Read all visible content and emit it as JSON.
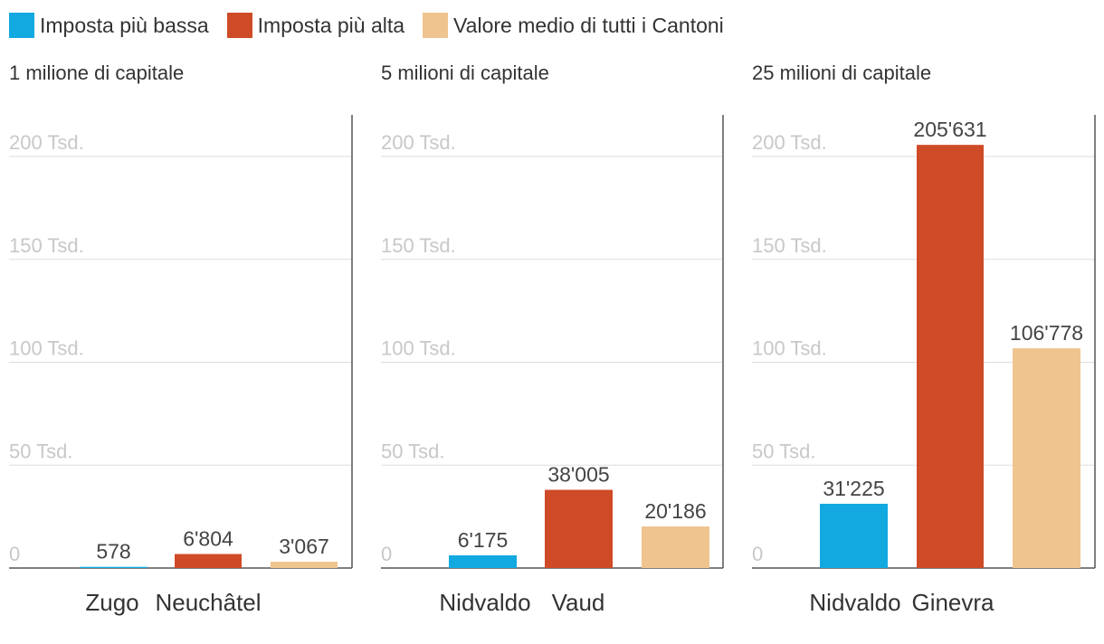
{
  "legend": [
    {
      "label": "Imposta più bassa",
      "color": "#12a9e1"
    },
    {
      "label": "Imposta più alta",
      "color": "#cf4a27"
    },
    {
      "label": "Valore medio di tutti i Cantoni",
      "color": "#efc48f"
    }
  ],
  "chart_data": [
    {
      "type": "bar",
      "title": "1 milione di capitale",
      "categories": [
        "Zugo",
        "Neuchâtel",
        ""
      ],
      "values": [
        578,
        6804,
        3067
      ],
      "value_labels": [
        "578",
        "6'804",
        "3'067"
      ],
      "colors": [
        "#12a9e1",
        "#cf4a27",
        "#efc48f"
      ],
      "ylim": [
        0,
        200000
      ],
      "ticks": [
        {
          "value": 0,
          "label": "0"
        },
        {
          "value": 50000,
          "label": "50 Tsd."
        },
        {
          "value": 100000,
          "label": "100 Tsd."
        },
        {
          "value": 150000,
          "label": "150 Tsd."
        },
        {
          "value": 200000,
          "label": "200 Tsd."
        }
      ],
      "grid": true
    },
    {
      "type": "bar",
      "title": "5 milioni di capitale",
      "categories": [
        "Nidvaldo",
        "Vaud",
        ""
      ],
      "values": [
        6175,
        38005,
        20186
      ],
      "value_labels": [
        "6'175",
        "38'005",
        "20'186"
      ],
      "colors": [
        "#12a9e1",
        "#cf4a27",
        "#efc48f"
      ],
      "ylim": [
        0,
        200000
      ],
      "ticks": [
        {
          "value": 0,
          "label": "0"
        },
        {
          "value": 50000,
          "label": "50 Tsd."
        },
        {
          "value": 100000,
          "label": "100 Tsd."
        },
        {
          "value": 150000,
          "label": "150 Tsd."
        },
        {
          "value": 200000,
          "label": "200 Tsd."
        }
      ],
      "grid": true
    },
    {
      "type": "bar",
      "title": "25 milioni di capitale",
      "categories": [
        "Nidvaldo",
        "Ginevra",
        ""
      ],
      "values": [
        31225,
        205631,
        106778
      ],
      "value_labels": [
        "31'225",
        "205'631",
        "106'778"
      ],
      "colors": [
        "#12a9e1",
        "#cf4a27",
        "#efc48f"
      ],
      "ylim": [
        0,
        200000
      ],
      "ticks": [
        {
          "value": 0,
          "label": "0"
        },
        {
          "value": 50000,
          "label": "50 Tsd."
        },
        {
          "value": 100000,
          "label": "100 Tsd."
        },
        {
          "value": 150000,
          "label": "150 Tsd."
        },
        {
          "value": 200000,
          "label": "200 Tsd."
        }
      ],
      "grid": true
    }
  ]
}
